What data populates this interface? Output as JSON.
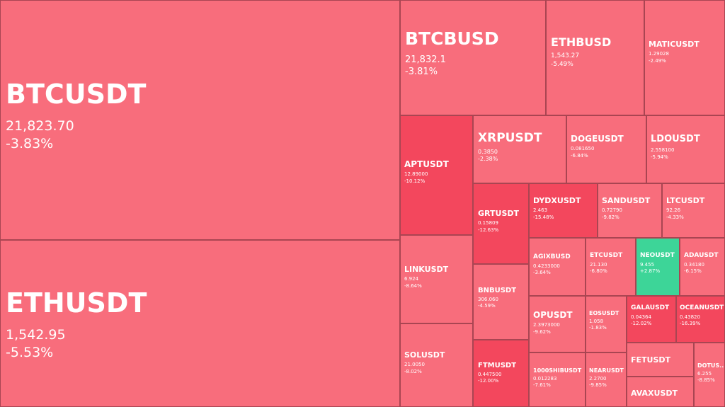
{
  "colors": {
    "mild_loss": "#f86d7c",
    "heavy_loss": "#f3475d",
    "gain": "#3dd598",
    "border": "#a94552",
    "text": "#ffffff"
  },
  "tiles": [
    {
      "symbol": "BTCUSDT",
      "price": "21,823.70",
      "change": "-3.83%",
      "tone": "mild"
    },
    {
      "symbol": "ETHUSDT",
      "price": "1,542.95",
      "change": "-5.53%",
      "tone": "mild"
    },
    {
      "symbol": "BTCBUSD",
      "price": "21,832.1",
      "change": "-3.81%",
      "tone": "mild"
    },
    {
      "symbol": "ETHBUSD",
      "price": "1,543.27",
      "change": "-5.49%",
      "tone": "mild"
    },
    {
      "symbol": "MATICUSDT",
      "price": "1.29028",
      "change": "-2.49%",
      "tone": "mild"
    },
    {
      "symbol": "APTUSDT",
      "price": "12.89000",
      "change": "-10.12%",
      "tone": "heavy"
    },
    {
      "symbol": "XRPUSDT",
      "price": "0.3850",
      "change": "-2.38%",
      "tone": "mild"
    },
    {
      "symbol": "DOGEUSDT",
      "price": "0.081650",
      "change": "-6.84%",
      "tone": "mild"
    },
    {
      "symbol": "LDOUSDT",
      "price": "2.558100",
      "change": "-5.94%",
      "tone": "mild"
    },
    {
      "symbol": "GRTUSDT",
      "price": "0.15809",
      "change": "-12.63%",
      "tone": "heavy"
    },
    {
      "symbol": "DYDXUSDT",
      "price": "2.463",
      "change": "-15.48%",
      "tone": "heavy"
    },
    {
      "symbol": "SANDUSDT",
      "price": "0.72790",
      "change": "-9.82%",
      "tone": "mild"
    },
    {
      "symbol": "LTCUSDT",
      "price": "92.26",
      "change": "-4.33%",
      "tone": "mild"
    },
    {
      "symbol": "LINKUSDT",
      "price": "6.924",
      "change": "-8.64%",
      "tone": "mild"
    },
    {
      "symbol": "AGIXBUSD",
      "price": "0.4233000",
      "change": "-3.64%",
      "tone": "mild"
    },
    {
      "symbol": "ETCUSDT",
      "price": "21.130",
      "change": "-6.80%",
      "tone": "mild"
    },
    {
      "symbol": "NEOUSDT",
      "price": "9.455",
      "change": "+2.87%",
      "tone": "gain"
    },
    {
      "symbol": "ADAUSDT",
      "price": "0.34180",
      "change": "-6.15%",
      "tone": "mild"
    },
    {
      "symbol": "BNBUSDT",
      "price": "306.060",
      "change": "-4.59%",
      "tone": "mild"
    },
    {
      "symbol": "OPUSDT",
      "price": "2.3973000",
      "change": "-9.62%",
      "tone": "mild"
    },
    {
      "symbol": "EOSUSDT",
      "price": "1.058",
      "change": "-1.83%",
      "tone": "mild"
    },
    {
      "symbol": "GALAUSDT",
      "price": "0.04364",
      "change": "-12.02%",
      "tone": "heavy"
    },
    {
      "symbol": "OCEANUSDT",
      "price": "0.43820",
      "change": "-16.39%",
      "tone": "heavy"
    },
    {
      "symbol": "SOLUSDT",
      "price": "21.0050",
      "change": "-8.02%",
      "tone": "mild"
    },
    {
      "symbol": "FTMUSDT",
      "price": "0.447500",
      "change": "-12.00%",
      "tone": "heavy"
    },
    {
      "symbol": "1000SHIBUSDT",
      "price": "0.012283",
      "change": "-7.61%",
      "tone": "mild"
    },
    {
      "symbol": "NEARUSDT",
      "price": "2.2700",
      "change": "-9.85%",
      "tone": "mild"
    },
    {
      "symbol": "FETUSDT",
      "price": "",
      "change": "",
      "tone": "mild"
    },
    {
      "symbol": "DOTUS...",
      "price": "6.255",
      "change": "-8.85%",
      "tone": "mild"
    },
    {
      "symbol": "AVAXUSDT",
      "price": "",
      "change": "",
      "tone": "mild"
    }
  ]
}
